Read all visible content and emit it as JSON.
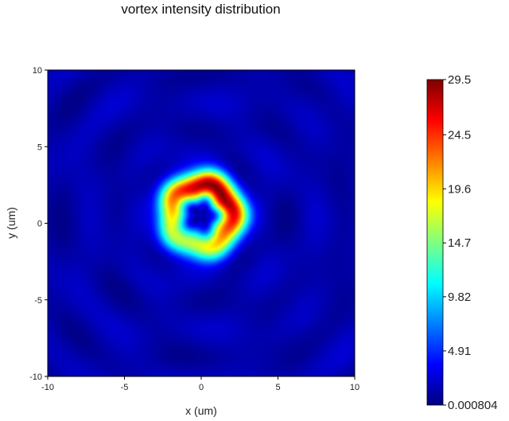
{
  "chart_data": {
    "type": "heatmap",
    "title": "vortex intensity distribution",
    "xlabel": "x (um)",
    "ylabel": "y (um)",
    "xlim": [
      -10,
      10
    ],
    "ylim": [
      -10,
      10
    ],
    "xticks": [
      -10,
      -5,
      0,
      5,
      10
    ],
    "yticks": [
      -10,
      -5,
      0,
      5,
      10
    ],
    "xtick_labels": [
      "-10",
      "-5",
      "0",
      "5",
      "10"
    ],
    "ytick_labels": [
      "-10",
      "-5",
      "0",
      "5",
      "10"
    ],
    "colorbar": {
      "min": 0.000804,
      "max": 29.5,
      "ticks": [
        29.5,
        24.5,
        19.6,
        14.7,
        9.82,
        4.91,
        0.000804
      ],
      "tick_labels": [
        "29.5",
        "24.5",
        "19.6",
        "14.7",
        "9.82",
        "4.91",
        "0.000804"
      ],
      "colormap": "jet"
    },
    "features": {
      "ring_center": [
        0,
        0.5
      ],
      "ring_radius_um": 2.0,
      "peak_value": 29.5,
      "peak_location": [
        1.0,
        2.0
      ],
      "core_value": 0.000804
    },
    "grid": false
  }
}
